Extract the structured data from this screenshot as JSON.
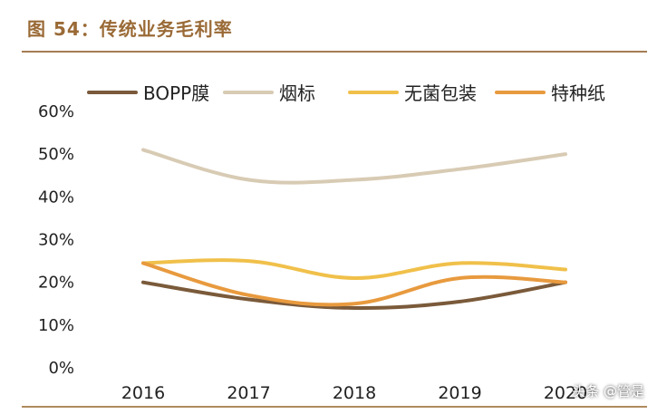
{
  "figure": {
    "title": "图 54：传统业务毛利率",
    "watermark": "头条 @管是"
  },
  "chart_data": {
    "type": "line",
    "categories": [
      "2016",
      "2017",
      "2018",
      "2019",
      "2020"
    ],
    "series": [
      {
        "name": "BOPP膜",
        "values": [
          0.2,
          0.16,
          0.14,
          0.155,
          0.2
        ],
        "color": "#7a5a3a"
      },
      {
        "name": "烟标",
        "values": [
          0.51,
          0.44,
          0.44,
          0.465,
          0.5
        ],
        "color": "#d8cbb4"
      },
      {
        "name": "无菌包装",
        "values": [
          0.245,
          0.25,
          0.21,
          0.245,
          0.23
        ],
        "color": "#f0c04a"
      },
      {
        "name": "特种纸",
        "values": [
          0.245,
          0.17,
          0.15,
          0.21,
          0.2
        ],
        "color": "#e89a3e"
      }
    ],
    "yticks": [
      "0%",
      "10%",
      "20%",
      "30%",
      "40%",
      "50%",
      "60%"
    ],
    "ylim": [
      0,
      0.6
    ],
    "grid": false,
    "legend": "top"
  }
}
